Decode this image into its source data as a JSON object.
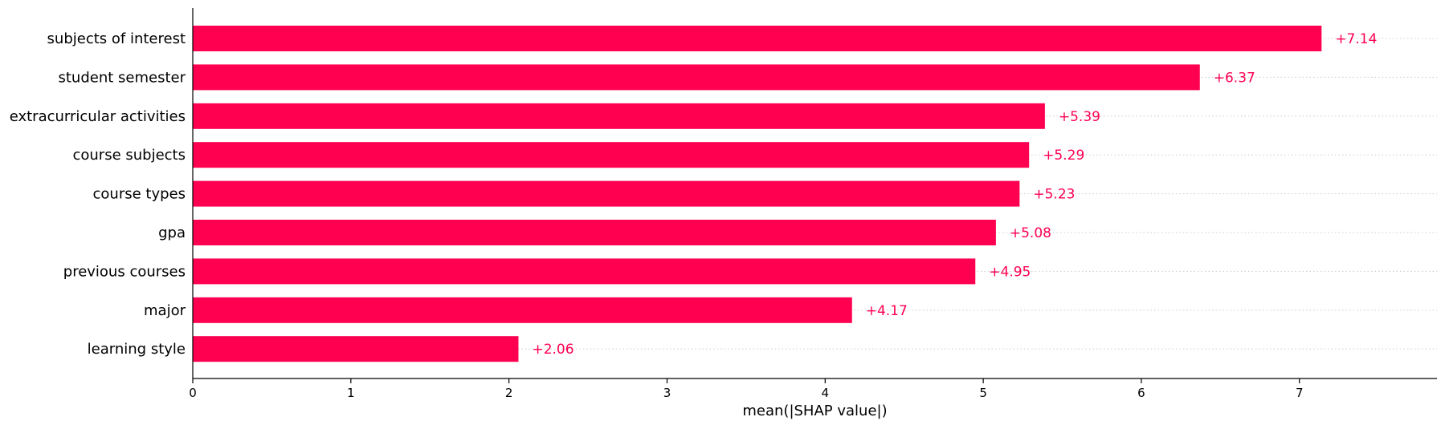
{
  "chart_data": {
    "type": "bar",
    "orientation": "horizontal",
    "categories": [
      "subjects of interest",
      "student semester",
      "extracurricular activities",
      "course subjects",
      "course types",
      "gpa",
      "previous courses",
      "major",
      "learning style"
    ],
    "values": [
      7.14,
      6.37,
      5.39,
      5.29,
      5.23,
      5.08,
      4.95,
      4.17,
      2.06
    ],
    "value_labels": [
      "+7.14",
      "+6.37",
      "+5.39",
      "+5.29",
      "+5.23",
      "+5.08",
      "+4.95",
      "+4.17",
      "+2.06"
    ],
    "xlabel": "mean(|SHAP value|)",
    "ylabel": "",
    "title": "",
    "xlim": [
      0,
      7.87
    ],
    "xticks": [
      0,
      1,
      2,
      3,
      4,
      5,
      6,
      7
    ],
    "xtick_labels": [
      "0",
      "1",
      "2",
      "3",
      "4",
      "5",
      "6",
      "7"
    ],
    "grid": false,
    "row_guides": "dotted",
    "legend": "none",
    "colors": {
      "bar": "#ff0051",
      "value_label": "#ff0051",
      "axis": "#000000",
      "guide": "#cccccc"
    }
  }
}
